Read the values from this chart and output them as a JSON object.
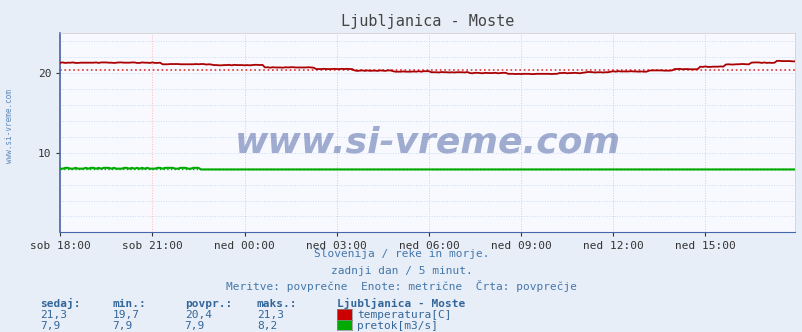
{
  "title": "Ljubljanica - Moste",
  "title_color": "#444444",
  "bg_color": "#e8eef8",
  "plot_bg_color": "#f8f8ff",
  "grid_color_h": "#ccddee",
  "grid_color_v": "#ffbbbb",
  "xlabel_ticks": [
    "sob 18:00",
    "sob 21:00",
    "ned 00:00",
    "ned 03:00",
    "ned 06:00",
    "ned 09:00",
    "ned 12:00",
    "ned 15:00"
  ],
  "yticks": [
    10,
    20
  ],
  "ylim": [
    0,
    25
  ],
  "xlim": [
    0,
    287
  ],
  "temp_color": "#aa0000",
  "temp_avg_color": "#dd3333",
  "flow_color": "#00aa00",
  "flow_avg_color": "#00aa00",
  "watermark": "www.si-vreme.com",
  "watermark_color": "#1a3a8a",
  "watermark_alpha": 0.4,
  "watermark_fontsize": 26,
  "subtitle1": "Slovenija / reke in morje.",
  "subtitle2": "zadnji dan / 5 minut.",
  "subtitle3": "Meritve: povprečne  Enote: metrične  Črta: povprečje",
  "subtitle_color": "#4477aa",
  "legend_title": "Ljubljanica - Moste",
  "legend_items": [
    "temperatura[C]",
    "pretok[m3/s]"
  ],
  "legend_colors": [
    "#cc0000",
    "#00aa00"
  ],
  "stats_headers": [
    "sedaj:",
    "min.:",
    "povpr.:",
    "maks.:"
  ],
  "stats_temp": [
    "21,3",
    "19,7",
    "20,4",
    "21,3"
  ],
  "stats_flow": [
    "7,9",
    "7,9",
    "7,9",
    "8,2"
  ],
  "stats_color": "#336699",
  "temp_avg_value": 20.4,
  "flow_avg_value": 7.9,
  "n_points": 288,
  "left_label": "www.si-vreme.com",
  "left_label_color": "#4477aa"
}
